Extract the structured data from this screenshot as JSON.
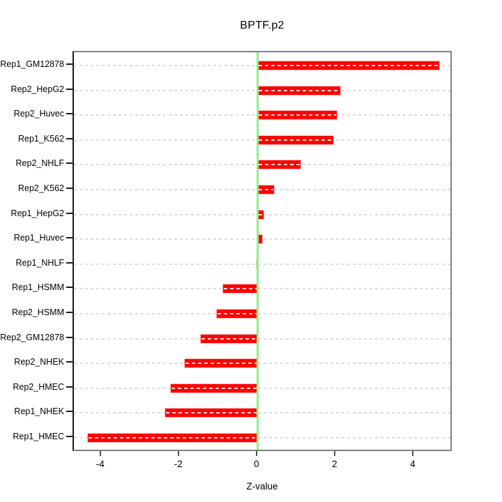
{
  "chart_data": {
    "type": "bar",
    "orientation": "horizontal",
    "title": "BPTF.p2",
    "xlabel": "Z-value",
    "ylabel": "",
    "categories": [
      "Rep1_GM12878",
      "Rep2_HepG2",
      "Rep2_Huvec",
      "Rep1_K562",
      "Rep2_NHLF",
      "Rep2_K562",
      "Rep1_HepG2",
      "Rep1_Huvec",
      "Rep1_NHLF",
      "Rep1_HSMM",
      "Rep2_HSMM",
      "Rep2_GM12878",
      "Rep2_NHEK",
      "Rep2_HMEC",
      "Rep1_NHEK",
      "Rep1_HMEC"
    ],
    "values": [
      4.64,
      2.11,
      2.02,
      1.93,
      1.09,
      0.41,
      0.15,
      0.11,
      -0.04,
      -0.89,
      -1.05,
      -1.46,
      -1.88,
      -2.23,
      -2.38,
      -4.35
    ],
    "xlim": [
      -4.71,
      5.0
    ],
    "x_ticks": [
      -4,
      -2,
      0,
      2,
      4
    ],
    "zero_reference_line": 0,
    "grid": "dashed horizontal line per category",
    "legend": "none",
    "colors": {
      "bar": "#ff0000",
      "bar_hatch": "#ffffff",
      "zero_line": "#90ee90",
      "grid_line": "#dcdcdc",
      "frame": "#808080",
      "axis": "#1a1a1a",
      "text": "#000000",
      "background": "#ffffff"
    }
  }
}
